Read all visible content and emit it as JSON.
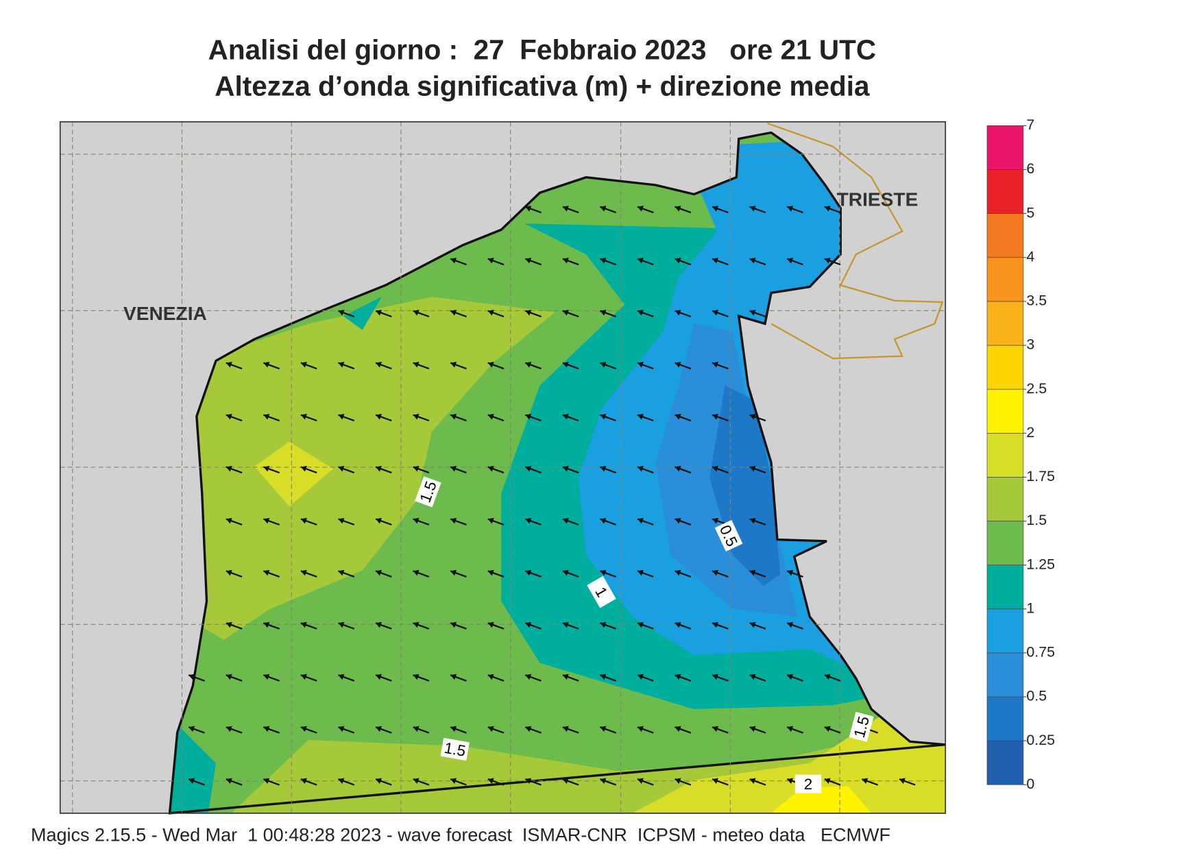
{
  "title": [
    "Analisi del giorno :  27  Febbraio 2023   ore 21 UTC",
    "Altezza d’onda significativa (m) + direzione media"
  ],
  "places": [
    "VENEZIA",
    "TRIESTE"
  ],
  "contour_labels": [
    "1.5",
    "1",
    "0.5",
    "1.5",
    "1.5",
    "2"
  ],
  "colorbar": {
    "levels": [
      0,
      0.25,
      0.5,
      0.75,
      1,
      1.25,
      1.5,
      1.75,
      2,
      2.5,
      3,
      3.5,
      4,
      5,
      6,
      7
    ],
    "colors": [
      "#1f5fae",
      "#1e78c8",
      "#2a8fd8",
      "#1aa0e0",
      "#00ae9e",
      "#6cbb4c",
      "#a6c93a",
      "#d8de28",
      "#fff200",
      "#fcd500",
      "#f9b21a",
      "#f79420",
      "#f47a22",
      "#e82228",
      "#e8156b"
    ]
  },
  "footer": "Magics 2.15.5 - Wed Mar  1 00:48:28 2023 - wave forecast  ISMAR-CNR  ICPSM - meteo data   ECMWF"
}
